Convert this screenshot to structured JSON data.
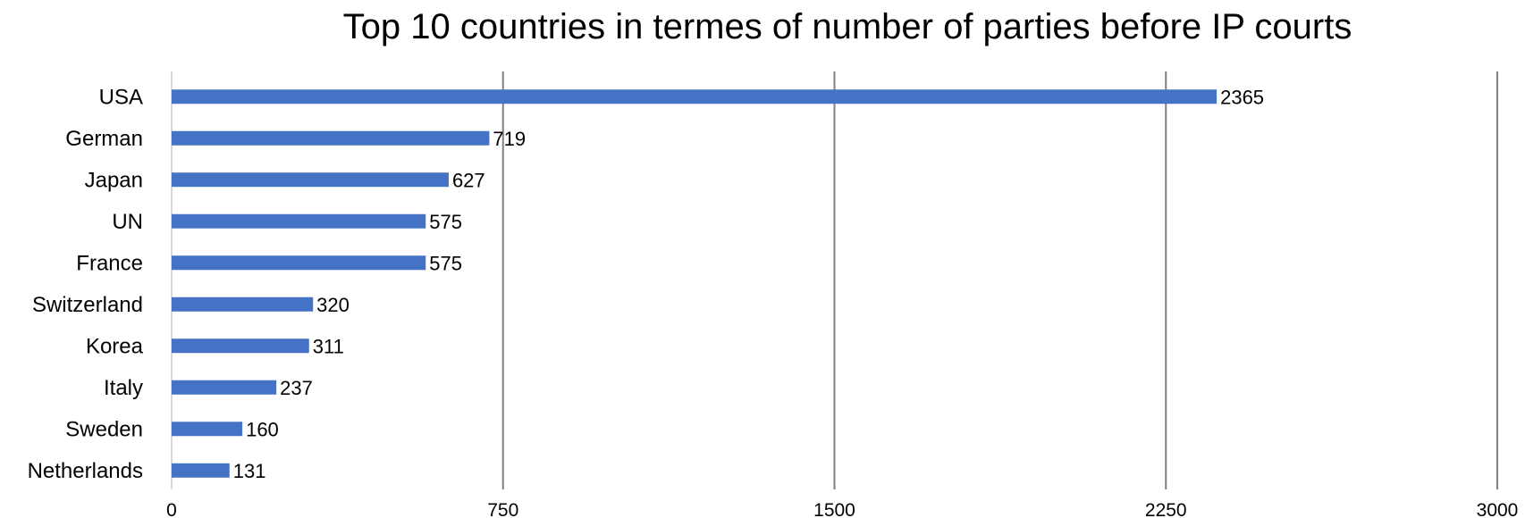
{
  "chart_data": {
    "type": "bar",
    "orientation": "horizontal",
    "title": "Top 10 countries in termes of number of parties before IP courts",
    "xlabel": "",
    "ylabel": "",
    "categories": [
      "USA",
      "German",
      "Japan",
      "UN",
      "France",
      "Switzerland",
      "Korea",
      "Italy",
      "Sweden",
      "Netherlands"
    ],
    "values": [
      2365,
      719,
      627,
      575,
      575,
      320,
      311,
      237,
      160,
      131
    ],
    "xlim": [
      0,
      3000
    ],
    "xticks": [
      "0",
      "750",
      "1500",
      "2250",
      "3000"
    ],
    "grid": true,
    "legend": "none",
    "data_labels": true
  },
  "colors": {
    "bar": "#4472C4",
    "gridline": "#808080",
    "axis": "#d9d9d9"
  }
}
